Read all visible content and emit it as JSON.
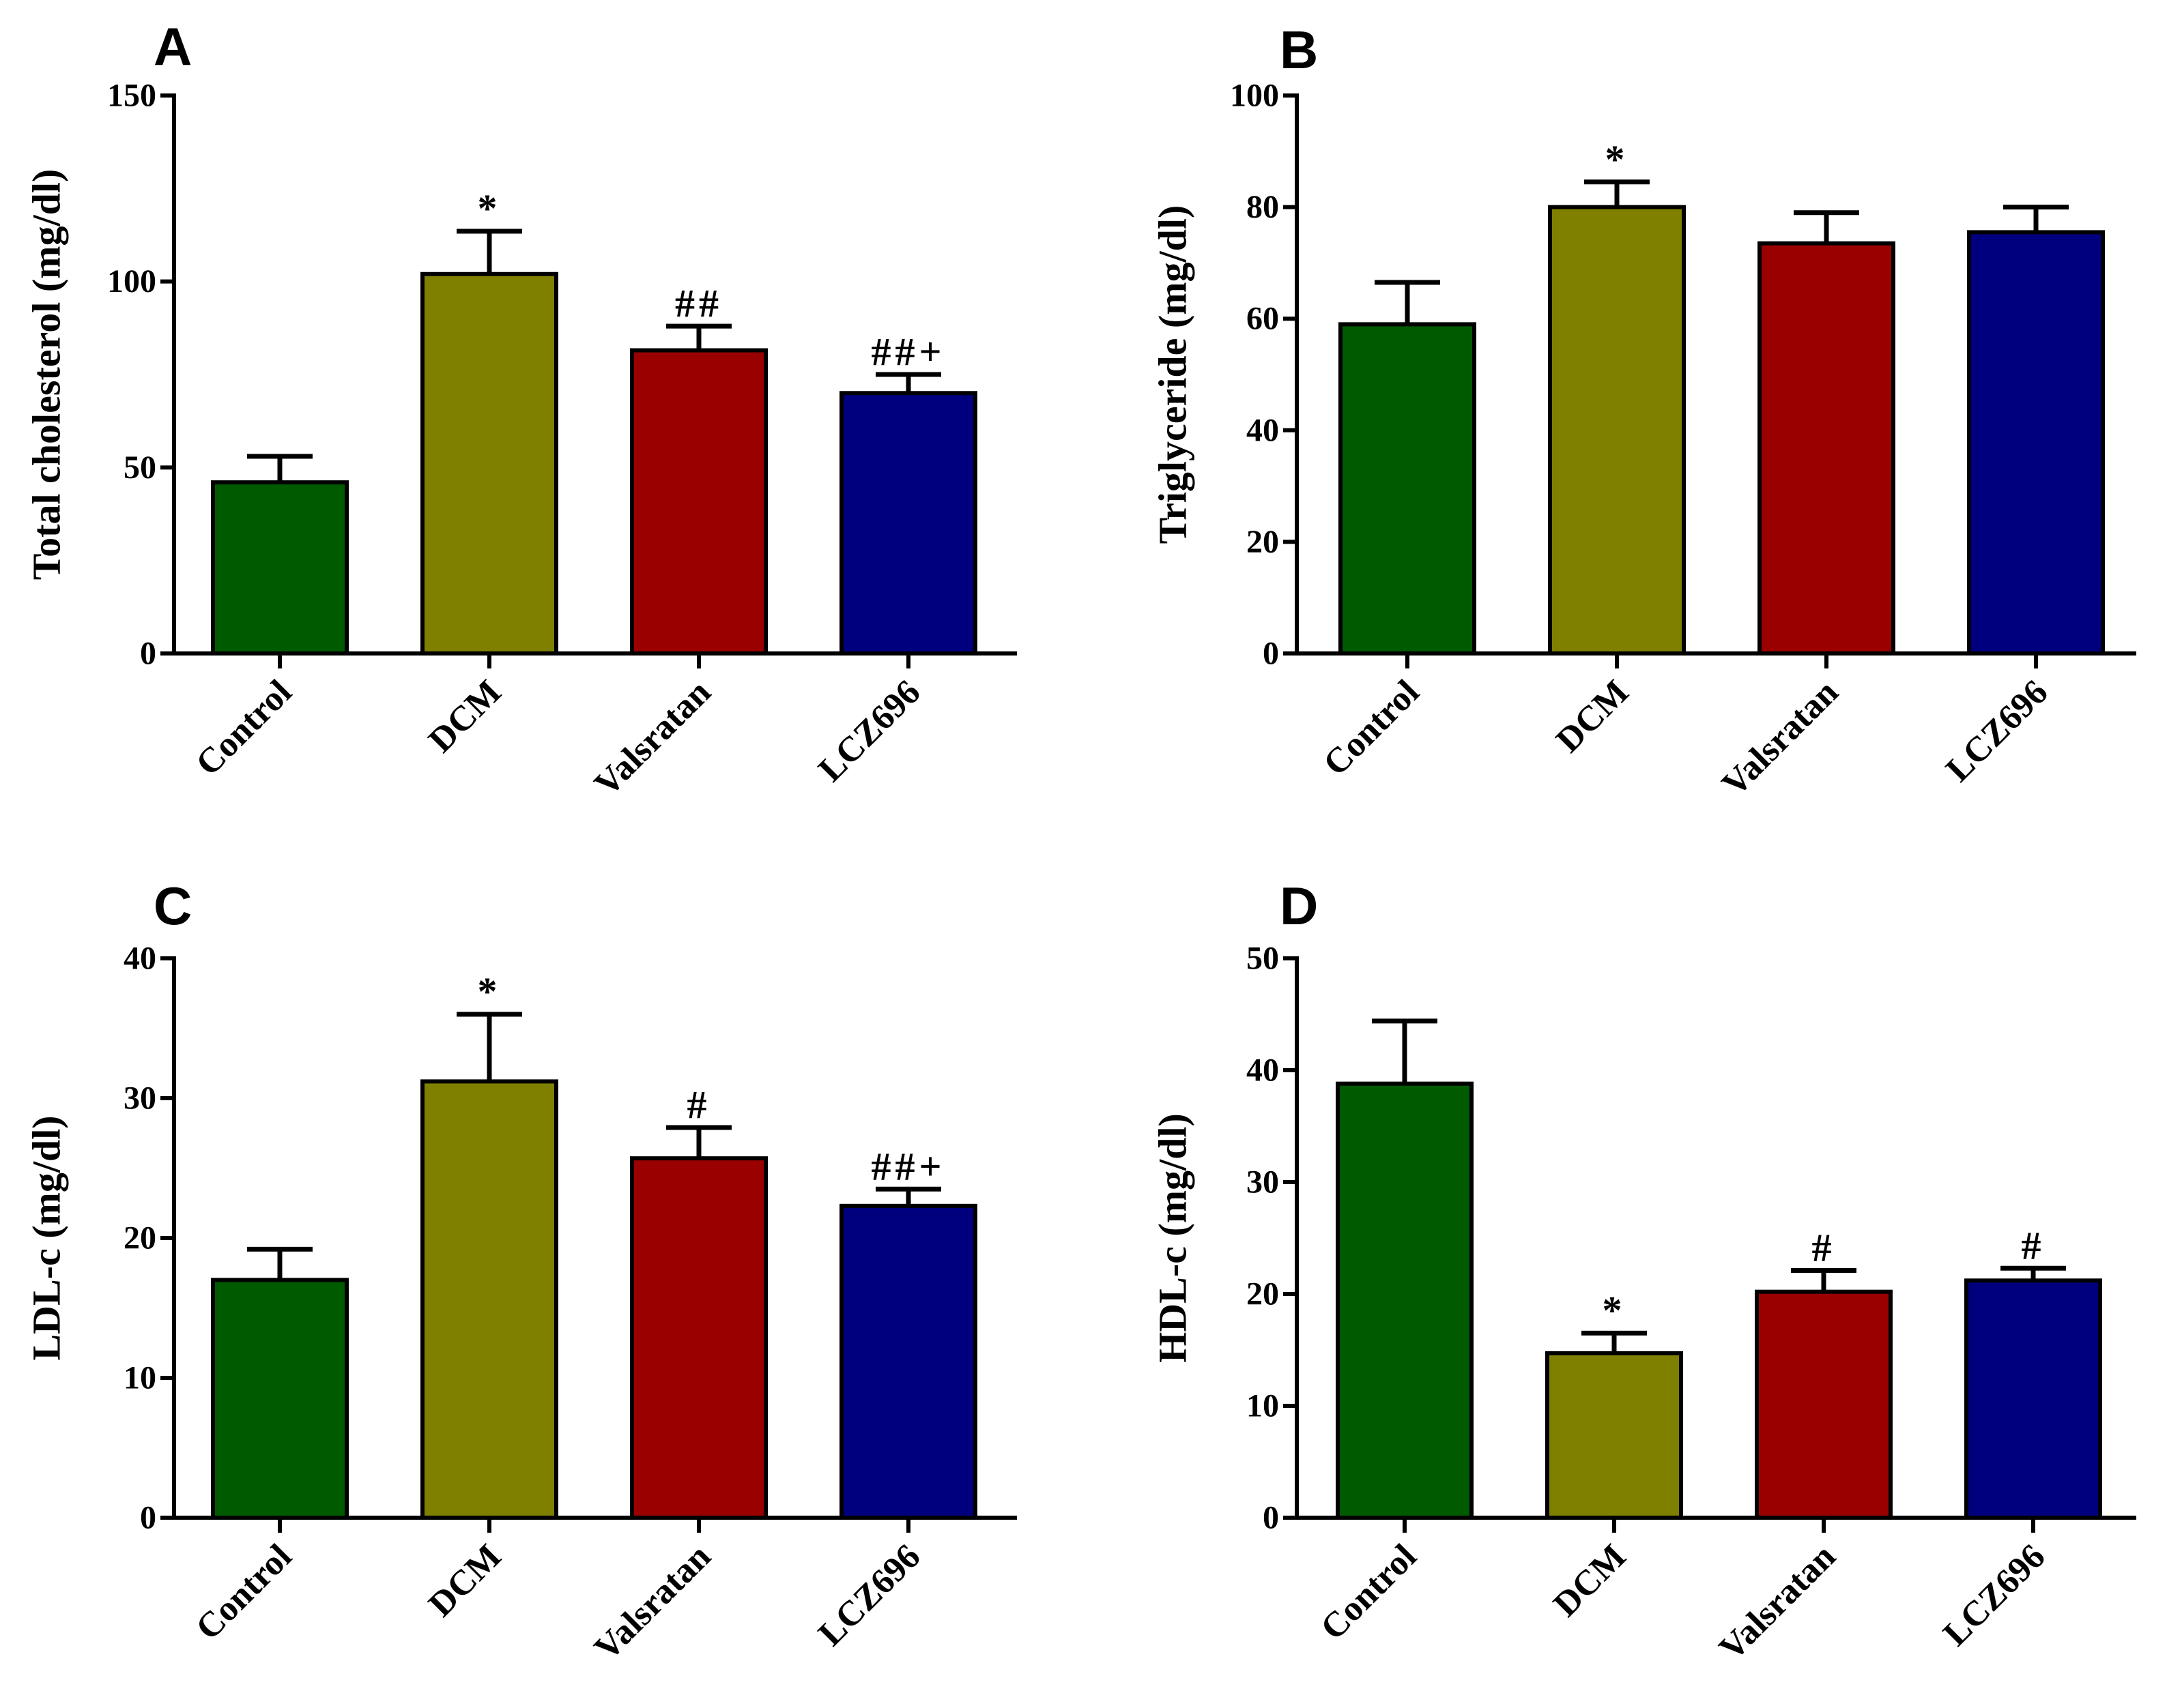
{
  "chart_data": [
    {
      "panel": "A",
      "type": "bar",
      "categories": [
        "Control",
        "DCM",
        "Valsratan",
        "LCZ696"
      ],
      "values": [
        46,
        102,
        81.5,
        70
      ],
      "errors": [
        7,
        11.5,
        6.5,
        5
      ],
      "annotations": [
        "",
        "*",
        "##",
        "##+"
      ],
      "ylabel": "Total cholesterol (mg/dl)",
      "ylim": [
        0,
        150
      ],
      "yticks": [
        "0",
        "50",
        "100",
        "150"
      ],
      "colors": [
        "#005A00",
        "#7F7F00",
        "#9A0000",
        "#00007F"
      ]
    },
    {
      "panel": "B",
      "type": "bar",
      "categories": [
        "Control",
        "DCM",
        "Valsratan",
        "LCZ696"
      ],
      "values": [
        59,
        80,
        73.5,
        75.5
      ],
      "errors": [
        7.5,
        4.5,
        5.5,
        4.5
      ],
      "annotations": [
        "",
        "*",
        "",
        ""
      ],
      "ylabel": "Triglyceride (mg/dl)",
      "ylim": [
        0,
        100
      ],
      "yticks": [
        "0",
        "20",
        "40",
        "60",
        "80",
        "100"
      ],
      "colors": [
        "#005A00",
        "#7F7F00",
        "#9A0000",
        "#00007F"
      ]
    },
    {
      "panel": "C",
      "type": "bar",
      "categories": [
        "Control",
        "DCM",
        "Valsratan",
        "LCZ696"
      ],
      "values": [
        17,
        31.2,
        25.7,
        22.3
      ],
      "errors": [
        2.2,
        4.8,
        2.2,
        1.2
      ],
      "annotations": [
        "",
        "*",
        "#",
        "##+"
      ],
      "ylabel": "LDL-c (mg/dl)",
      "ylim": [
        0,
        40
      ],
      "yticks": [
        "0",
        "10",
        "20",
        "30",
        "40"
      ],
      "colors": [
        "#005A00",
        "#7F7F00",
        "#9A0000",
        "#00007F"
      ]
    },
    {
      "panel": "D",
      "type": "bar",
      "categories": [
        "Control",
        "DCM",
        "Valsratan",
        "LCZ696"
      ],
      "values": [
        38.8,
        14.7,
        20.2,
        21.2
      ],
      "errors": [
        5.6,
        1.8,
        1.9,
        1.1
      ],
      "annotations": [
        "",
        "*",
        "#",
        "#"
      ],
      "ylabel": "HDL-c (mg/dl)",
      "ylim": [
        0,
        50
      ],
      "yticks": [
        "0",
        "10",
        "20",
        "30",
        "40",
        "50"
      ],
      "colors": [
        "#005A00",
        "#7F7F00",
        "#9A0000",
        "#00007F"
      ]
    }
  ]
}
